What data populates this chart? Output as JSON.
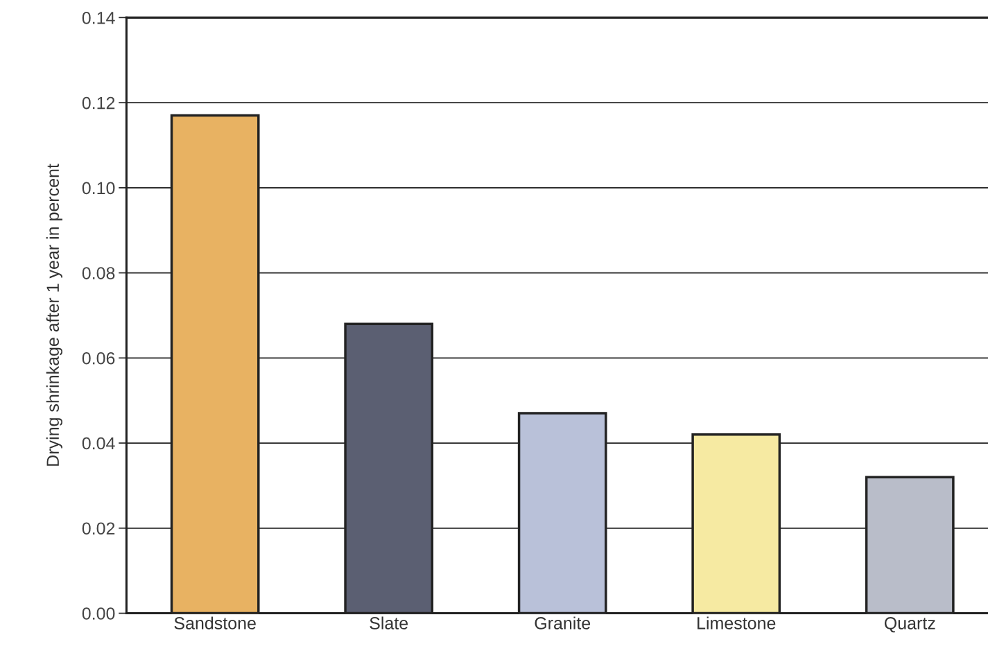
{
  "chart_data": {
    "type": "bar",
    "ylabel": "Drying shrinkage after 1 year in percent",
    "categories": [
      "Sandstone",
      "Slate",
      "Granite",
      "Limestone",
      "Quartz"
    ],
    "values": [
      0.117,
      0.068,
      0.047,
      0.042,
      0.032
    ],
    "colors": [
      "#e8b262",
      "#5b5f72",
      "#b9c1d9",
      "#f6eaa2",
      "#b9bdc9"
    ],
    "ylim": [
      0,
      0.14
    ],
    "yticks": [
      {
        "value": 0,
        "label": "0.00"
      },
      {
        "value": 0.02,
        "label": "0.02"
      },
      {
        "value": 0.04,
        "label": "0.04"
      },
      {
        "value": 0.06,
        "label": "0.06"
      },
      {
        "value": 0.08,
        "label": "0.08"
      },
      {
        "value": 0.1,
        "label": "0.10"
      },
      {
        "value": 0.12,
        "label": "0.12"
      },
      {
        "value": 0.14,
        "label": "0.14"
      }
    ],
    "grid": "y",
    "legend": false
  }
}
